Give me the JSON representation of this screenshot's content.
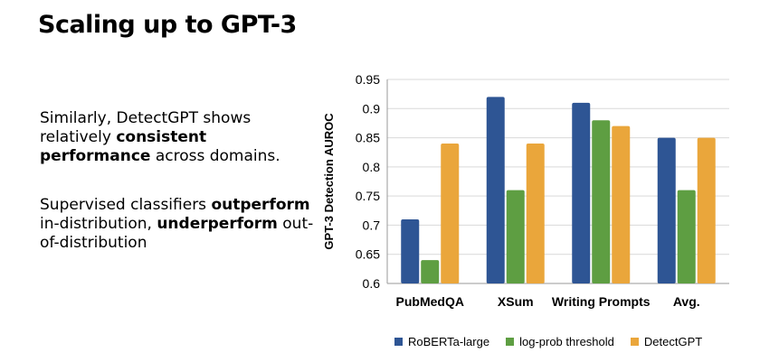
{
  "slide": {
    "title": "Scaling up to GPT-3",
    "p1": {
      "a": "Similarly, DetectGPT shows relatively ",
      "b": "consistent performance",
      "c": " across domains."
    },
    "p2": {
      "a": "Supervised classifiers ",
      "b": "outperform",
      "c": " in-distribution, ",
      "d": "underperform",
      "e": " out-of-distribution"
    }
  },
  "chart_data": {
    "type": "bar",
    "categories": [
      "PubMedQA",
      "XSum",
      "Writing Prompts",
      "Avg."
    ],
    "series": [
      {
        "name": "RoBERTa-large",
        "values": [
          0.71,
          0.92,
          0.91,
          0.85
        ],
        "color": "#2e5594"
      },
      {
        "name": "log-prob threshold",
        "values": [
          0.64,
          0.76,
          0.88,
          0.76
        ],
        "color": "#5e9e42"
      },
      {
        "name": "DetectGPT",
        "values": [
          0.84,
          0.84,
          0.87,
          0.85
        ],
        "color": "#eaa63b"
      }
    ],
    "ylabel": "GPT-3 Detection AUROC",
    "ylim": [
      0.6,
      0.95
    ],
    "yticks": [
      "0.6",
      "0.65",
      "0.7",
      "0.75",
      "0.8",
      "0.85",
      "0.9",
      "0.95"
    ],
    "grid": "horizontal",
    "legend": "bottom"
  }
}
